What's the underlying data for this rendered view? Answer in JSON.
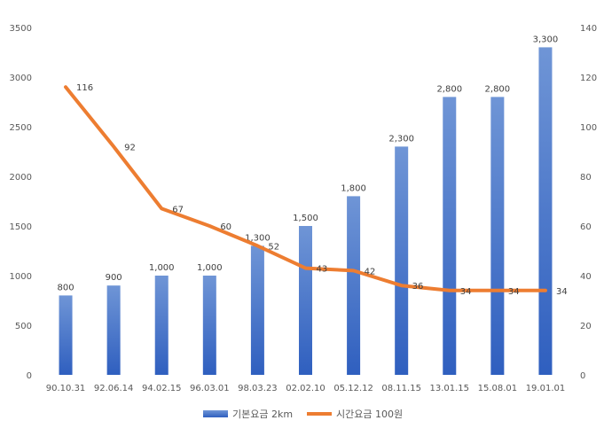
{
  "chart_data": {
    "type": "bar",
    "categories": [
      "90.10.31",
      "92.06.14",
      "94.02.15",
      "96.03.01",
      "98.03.23",
      "02.02.10",
      "05.12.12",
      "08.11.15",
      "13.01.15",
      "15.08.01",
      "19.01.01"
    ],
    "series": [
      {
        "name": "기본요금 2km",
        "type": "bar",
        "axis": "left",
        "values": [
          800,
          900,
          1000,
          1000,
          1300,
          1500,
          1800,
          2300,
          2800,
          2800,
          3300
        ],
        "labels": [
          "800",
          "900",
          "1,000",
          "1,000",
          "1,300",
          "1,500",
          "1,800",
          "2,300",
          "2,800",
          "2,800",
          "3,300"
        ],
        "color": "#4472C4"
      },
      {
        "name": "시간요금 100원",
        "type": "line",
        "axis": "right",
        "values": [
          116,
          92,
          67,
          60,
          52,
          43,
          42,
          36,
          34,
          34,
          34
        ],
        "labels": [
          "116",
          "92",
          "67",
          "60",
          "52",
          "43",
          "42",
          "36",
          "34",
          "34",
          "34"
        ],
        "color": "#ED7D31"
      }
    ],
    "y_left": {
      "min": 0,
      "max": 3500,
      "ticks": [
        "0",
        "500",
        "1000",
        "1500",
        "2000",
        "2500",
        "3000",
        "3500"
      ]
    },
    "y_right": {
      "min": 0,
      "max": 140,
      "ticks": [
        "0",
        "20",
        "40",
        "60",
        "80",
        "100",
        "120",
        "140"
      ]
    },
    "grid": false,
    "legend": "bottom"
  }
}
